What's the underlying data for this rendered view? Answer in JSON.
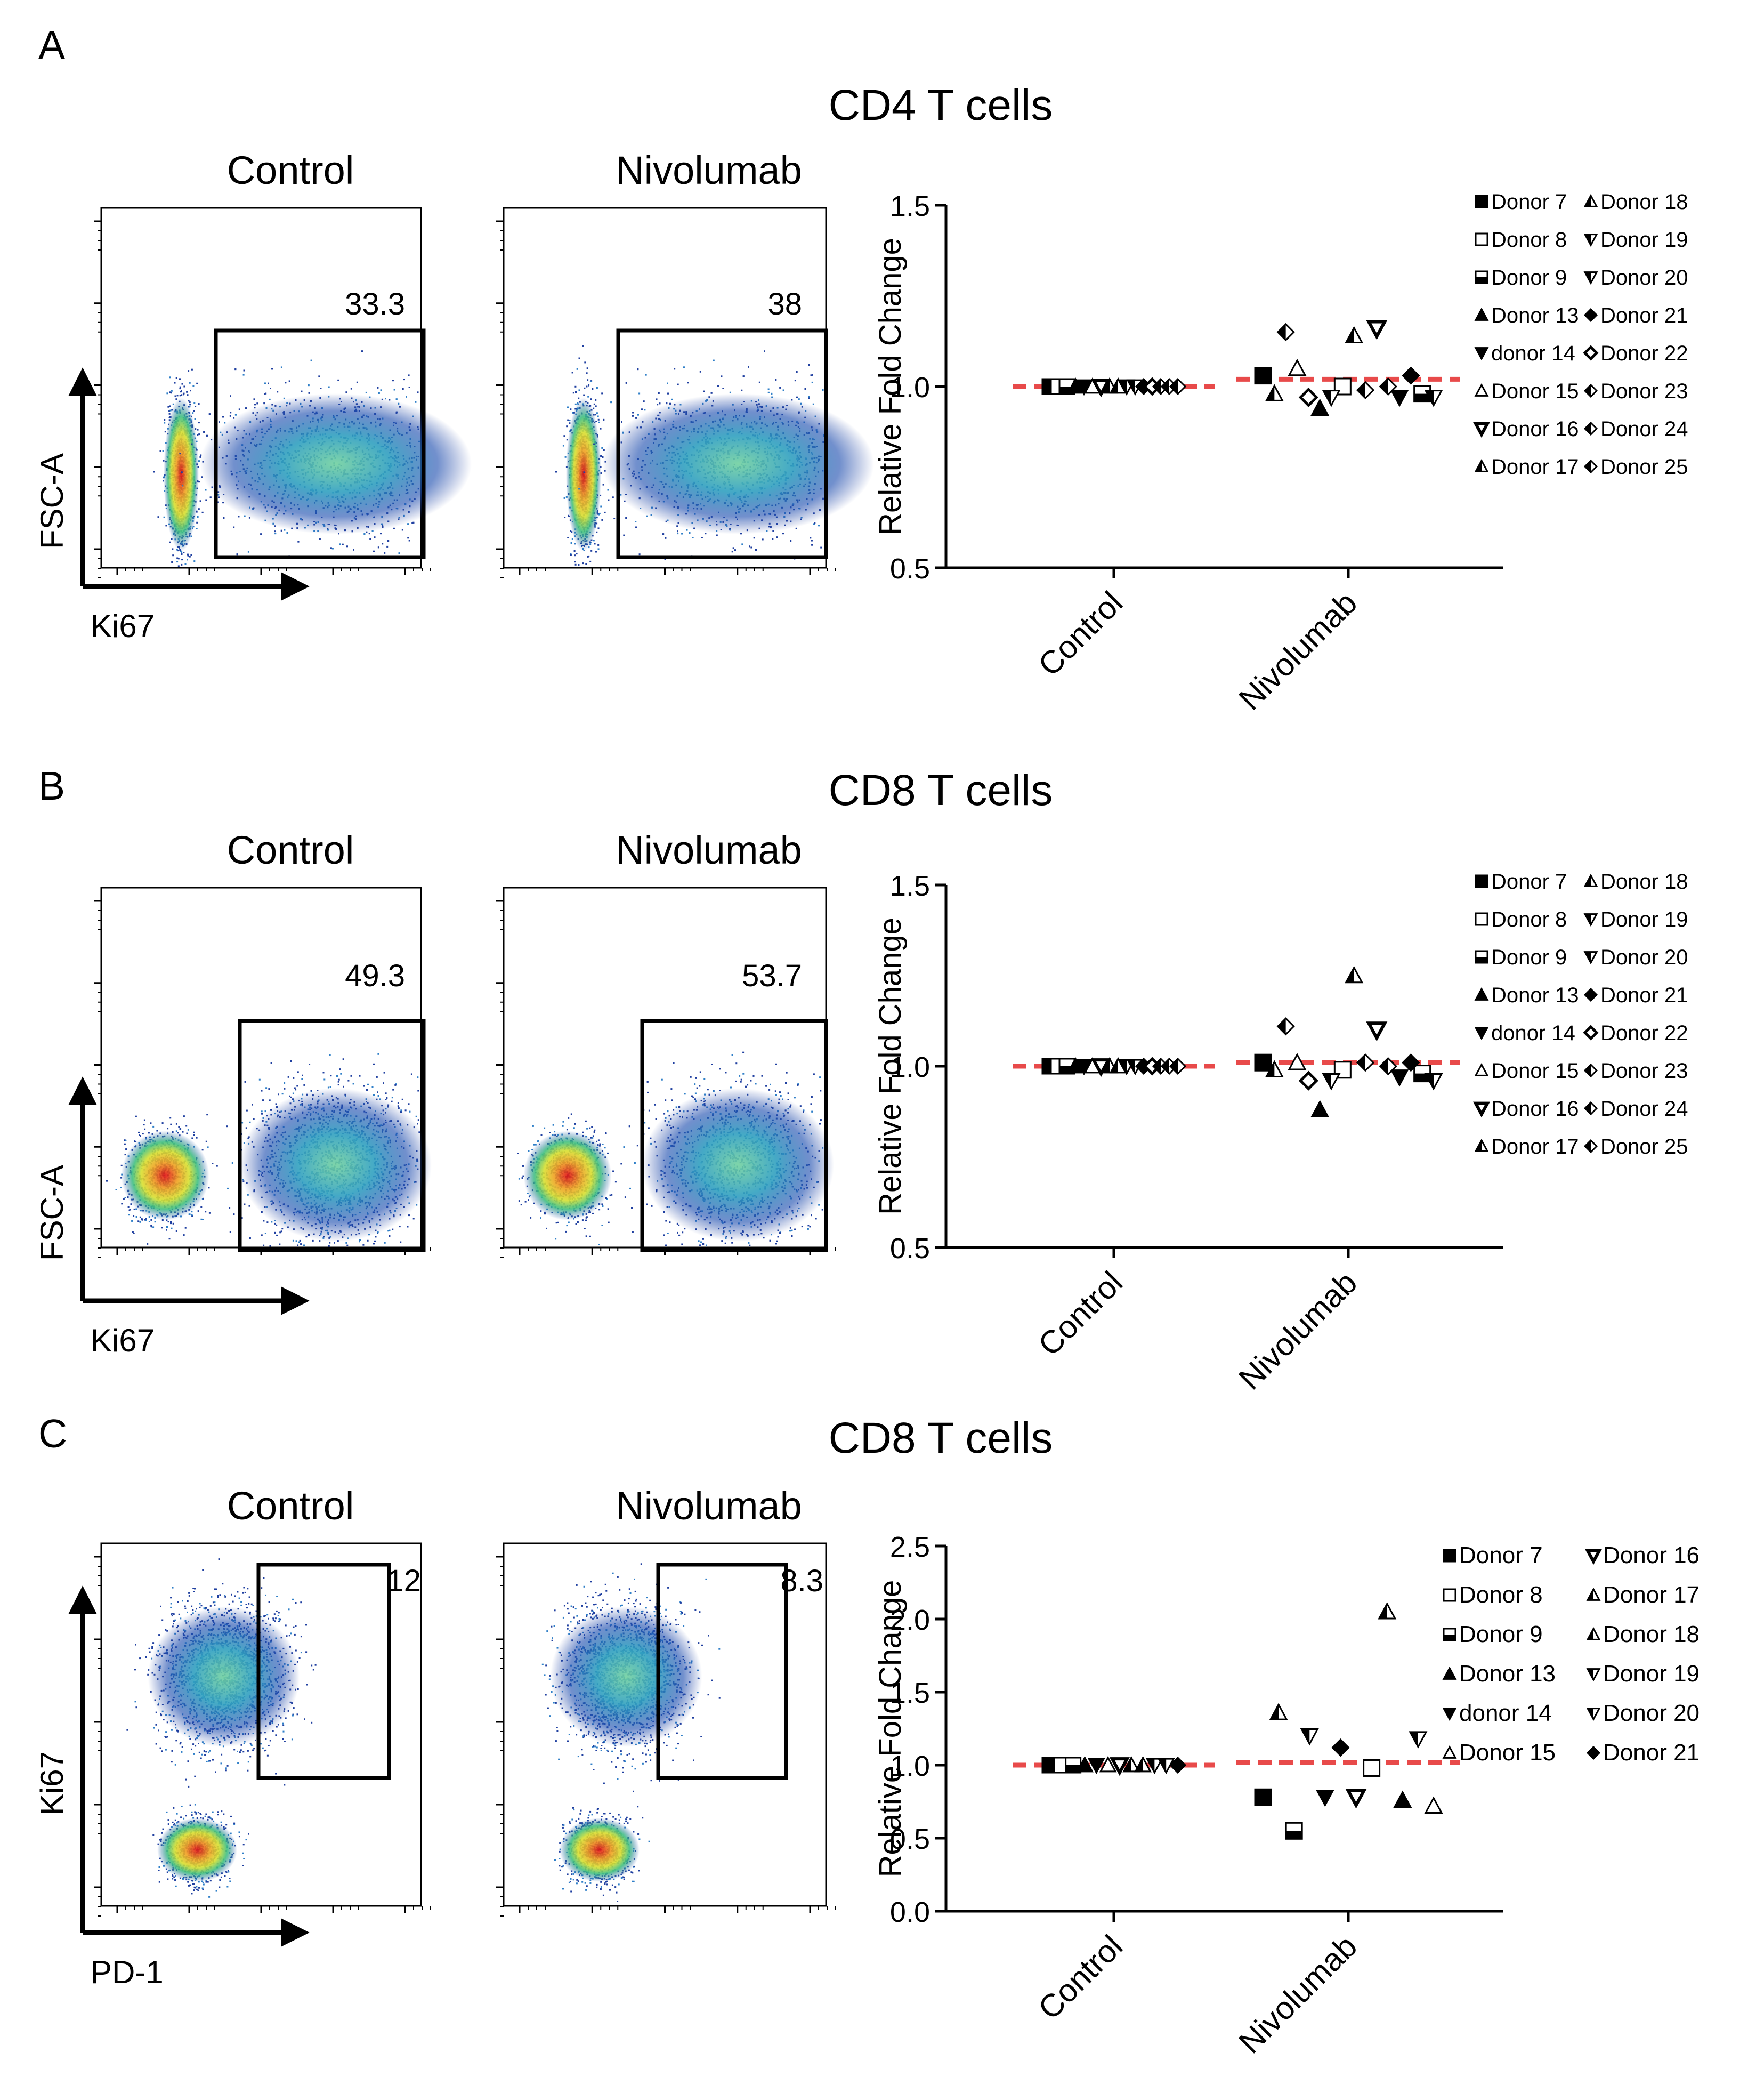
{
  "figure": {
    "panels": [
      {
        "letter": "A",
        "title": "CD4 T cells",
        "flow": {
          "left_title": "Control",
          "right_title": "Nivolumab",
          "left_gate_value": "33.3",
          "right_gate_value": "38",
          "y_axis_label": "FSC-A",
          "x_axis_label": "Ki67"
        }
      },
      {
        "letter": "B",
        "title": "CD8 T cells",
        "flow": {
          "left_title": "Control",
          "right_title": "Nivolumab",
          "left_gate_value": "49.3",
          "right_gate_value": "53.7",
          "y_axis_label": "FSC-A",
          "x_axis_label": "Ki67"
        }
      },
      {
        "letter": "C",
        "title": "CD8 T cells",
        "flow": {
          "left_title": "Control",
          "right_title": "Nivolumab",
          "left_gate_value": "12",
          "right_gate_value": "8.3",
          "y_axis_label": "Ki67",
          "x_axis_label": "PD-1"
        }
      }
    ]
  },
  "colors": {
    "mean_line": "#e84a4a",
    "axis": "#000000",
    "density_low": "#1f3fa0",
    "density_mid": "#3fb0b0",
    "density_high": "#e02010"
  },
  "chart_data": [
    {
      "type": "scatter",
      "panel": "A",
      "title": "CD4 T cells",
      "ylabel": "Relative Fold Change",
      "xlabel": "",
      "categories": [
        "Control",
        "Nivolumab"
      ],
      "ylim": [
        0.5,
        1.5
      ],
      "yticks": [
        "0.5",
        "1.0",
        "1.5"
      ],
      "mean_line": [
        1.0,
        1.02
      ],
      "legend": [
        "Donor 7",
        "Donor 8",
        "Donor 9",
        "Donor 13",
        "donor 14",
        "Donor 15",
        "Donor 16",
        "Donor 17",
        "Donor 18",
        "Donor 19",
        "Donor 20",
        "Donor 21",
        "Donor 22",
        "Donor 23",
        "Donor 24",
        "Donor 25"
      ],
      "series": [
        {
          "name": "Donor 7",
          "symbol": "square-filled",
          "values": [
            1.0,
            1.03
          ]
        },
        {
          "name": "Donor 8",
          "symbol": "square-open",
          "values": [
            1.0,
            1.0
          ]
        },
        {
          "name": "Donor 9",
          "symbol": "square-half",
          "values": [
            1.0,
            0.98
          ]
        },
        {
          "name": "Donor 13",
          "symbol": "triangle-filled",
          "values": [
            1.0,
            0.94
          ]
        },
        {
          "name": "donor 14",
          "symbol": "triangle-down-filled",
          "values": [
            1.0,
            0.97
          ]
        },
        {
          "name": "Donor 15",
          "symbol": "triangle-open",
          "values": [
            1.0,
            1.05
          ]
        },
        {
          "name": "Donor 16",
          "symbol": "triangle-down-open-thick",
          "values": [
            1.0,
            1.16
          ]
        },
        {
          "name": "Donor 17",
          "symbol": "triangle-half",
          "values": [
            1.0,
            0.98
          ]
        },
        {
          "name": "Donor 18",
          "symbol": "triangle-half",
          "values": [
            1.0,
            1.14
          ]
        },
        {
          "name": "Donor 19",
          "symbol": "triangle-down-half",
          "values": [
            1.0,
            0.97
          ]
        },
        {
          "name": "Donor 20",
          "symbol": "triangle-down-half",
          "values": [
            1.0,
            0.97
          ]
        },
        {
          "name": "Donor 21",
          "symbol": "diamond-filled",
          "values": [
            1.0,
            1.03
          ]
        },
        {
          "name": "Donor 22",
          "symbol": "diamond-open",
          "values": [
            1.0,
            0.97
          ]
        },
        {
          "name": "Donor 23",
          "symbol": "diamond-half",
          "values": [
            1.0,
            1.0
          ]
        },
        {
          "name": "Donor 24",
          "symbol": "diamond-half",
          "values": [
            1.0,
            1.15
          ]
        },
        {
          "name": "Donor 25",
          "symbol": "diamond-half",
          "values": [
            1.0,
            0.99
          ]
        }
      ]
    },
    {
      "type": "scatter",
      "panel": "B",
      "title": "CD8 T cells",
      "ylabel": "Relative Fold Change",
      "xlabel": "",
      "categories": [
        "Control",
        "Nivolumab"
      ],
      "ylim": [
        0.5,
        1.5
      ],
      "yticks": [
        "0.5",
        "1.0",
        "1.5"
      ],
      "mean_line": [
        1.0,
        1.01
      ],
      "legend": [
        "Donor 7",
        "Donor 8",
        "Donor 9",
        "Donor 13",
        "donor 14",
        "Donor 15",
        "Donor 16",
        "Donor 17",
        "Donor 18",
        "Donor 19",
        "Donor 20",
        "Donor 21",
        "Donor 22",
        "Donor 23",
        "Donor 24",
        "Donor 25"
      ],
      "series": [
        {
          "name": "Donor 7",
          "symbol": "square-filled",
          "values": [
            1.0,
            1.01
          ]
        },
        {
          "name": "Donor 8",
          "symbol": "square-open",
          "values": [
            1.0,
            0.99
          ]
        },
        {
          "name": "Donor 9",
          "symbol": "square-half",
          "values": [
            1.0,
            0.98
          ]
        },
        {
          "name": "Donor 13",
          "symbol": "triangle-filled",
          "values": [
            1.0,
            0.88
          ]
        },
        {
          "name": "donor 14",
          "symbol": "triangle-down-filled",
          "values": [
            1.0,
            0.97
          ]
        },
        {
          "name": "Donor 15",
          "symbol": "triangle-open",
          "values": [
            1.0,
            1.01
          ]
        },
        {
          "name": "Donor 16",
          "symbol": "triangle-down-open-thick",
          "values": [
            1.0,
            1.1
          ]
        },
        {
          "name": "Donor 17",
          "symbol": "triangle-half",
          "values": [
            1.0,
            0.99
          ]
        },
        {
          "name": "Donor 18",
          "symbol": "triangle-half",
          "values": [
            1.0,
            1.25
          ]
        },
        {
          "name": "Donor 19",
          "symbol": "triangle-down-half",
          "values": [
            1.0,
            0.96
          ]
        },
        {
          "name": "Donor 20",
          "symbol": "triangle-down-half",
          "values": [
            1.0,
            0.96
          ]
        },
        {
          "name": "Donor 21",
          "symbol": "diamond-filled",
          "values": [
            1.0,
            1.01
          ]
        },
        {
          "name": "Donor 22",
          "symbol": "diamond-open",
          "values": [
            1.0,
            0.96
          ]
        },
        {
          "name": "Donor 23",
          "symbol": "diamond-half",
          "values": [
            1.0,
            1.0
          ]
        },
        {
          "name": "Donor 24",
          "symbol": "diamond-half",
          "values": [
            1.0,
            1.11
          ]
        },
        {
          "name": "Donor 25",
          "symbol": "diamond-half",
          "values": [
            1.0,
            1.01
          ]
        }
      ]
    },
    {
      "type": "scatter",
      "panel": "C",
      "title": "CD8 T cells",
      "ylabel": "Relative Fold Change",
      "xlabel": "",
      "categories": [
        "Control",
        "Nivolumab"
      ],
      "ylim": [
        0.0,
        2.5
      ],
      "yticks": [
        "0.0",
        "0.5",
        "1.0",
        "1.5",
        "2.0",
        "2.5"
      ],
      "mean_line": [
        1.0,
        1.02
      ],
      "legend": [
        "Donor 7",
        "Donor 8",
        "Donor 9",
        "Donor 13",
        "donor 14",
        "Donor 15",
        "Donor 16",
        "Donor 17",
        "Donor 18",
        "Donor 19",
        "Donor 20",
        "Donor 21"
      ],
      "series": [
        {
          "name": "Donor 7",
          "symbol": "square-filled",
          "values": [
            1.0,
            0.78
          ]
        },
        {
          "name": "Donor 8",
          "symbol": "square-open",
          "values": [
            1.0,
            0.98
          ]
        },
        {
          "name": "Donor 9",
          "symbol": "square-half",
          "values": [
            1.0,
            0.55
          ]
        },
        {
          "name": "Donor 13",
          "symbol": "triangle-filled",
          "values": [
            1.0,
            0.76
          ]
        },
        {
          "name": "donor 14",
          "symbol": "triangle-down-filled",
          "values": [
            1.0,
            0.78
          ]
        },
        {
          "name": "Donor 15",
          "symbol": "triangle-open",
          "values": [
            1.0,
            0.72
          ]
        },
        {
          "name": "Donor 16",
          "symbol": "triangle-down-open-thick",
          "values": [
            1.0,
            0.78
          ]
        },
        {
          "name": "Donor 17",
          "symbol": "triangle-half",
          "values": [
            1.0,
            1.36
          ]
        },
        {
          "name": "Donor 18",
          "symbol": "triangle-half",
          "values": [
            1.0,
            2.05
          ]
        },
        {
          "name": "Donor 19",
          "symbol": "triangle-down-half",
          "values": [
            1.0,
            1.2
          ]
        },
        {
          "name": "Donor 20",
          "symbol": "triangle-down-half",
          "values": [
            1.0,
            1.18
          ]
        },
        {
          "name": "Donor 21",
          "symbol": "diamond-filled",
          "values": [
            1.0,
            1.12
          ]
        }
      ]
    }
  ]
}
